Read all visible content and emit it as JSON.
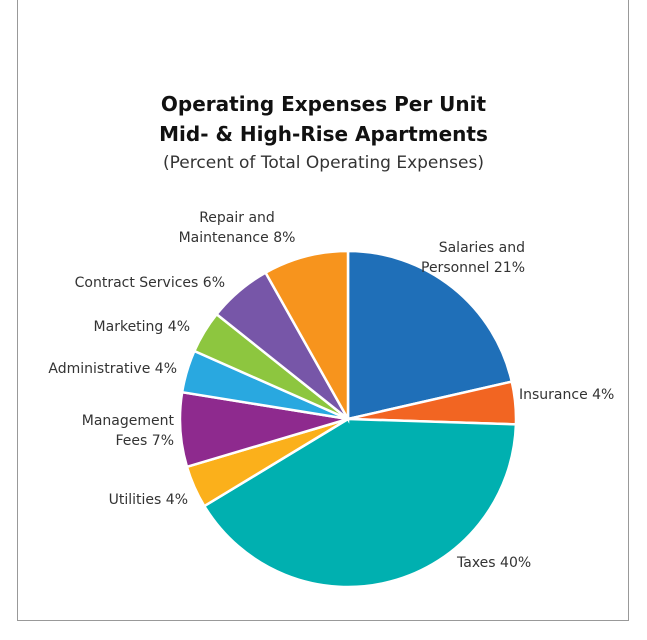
{
  "chart_data": {
    "type": "pie",
    "title": "Operating Expenses Per Unit",
    "subtitle": "Mid- & High-Rise Apartments",
    "caption": "(Percent of Total Operating Expenses)",
    "categories": [
      "Salaries and Personnel",
      "Insurance",
      "Taxes",
      "Utilities",
      "Management Fees",
      "Administrative",
      "Marketing",
      "Contract Services",
      "Repair and Maintenance"
    ],
    "values": [
      21,
      4,
      40,
      4,
      7,
      4,
      4,
      6,
      8
    ],
    "value_labels": [
      "21%",
      "4%",
      "40%",
      "4%",
      "7%",
      "4%",
      "4%",
      "6%",
      "8%"
    ],
    "colors": [
      "#1f6fb8",
      "#f26522",
      "#00b0b0",
      "#fbb01b",
      "#8e2a8e",
      "#29a8e0",
      "#8dc63f",
      "#7756a8",
      "#f7941d"
    ]
  }
}
